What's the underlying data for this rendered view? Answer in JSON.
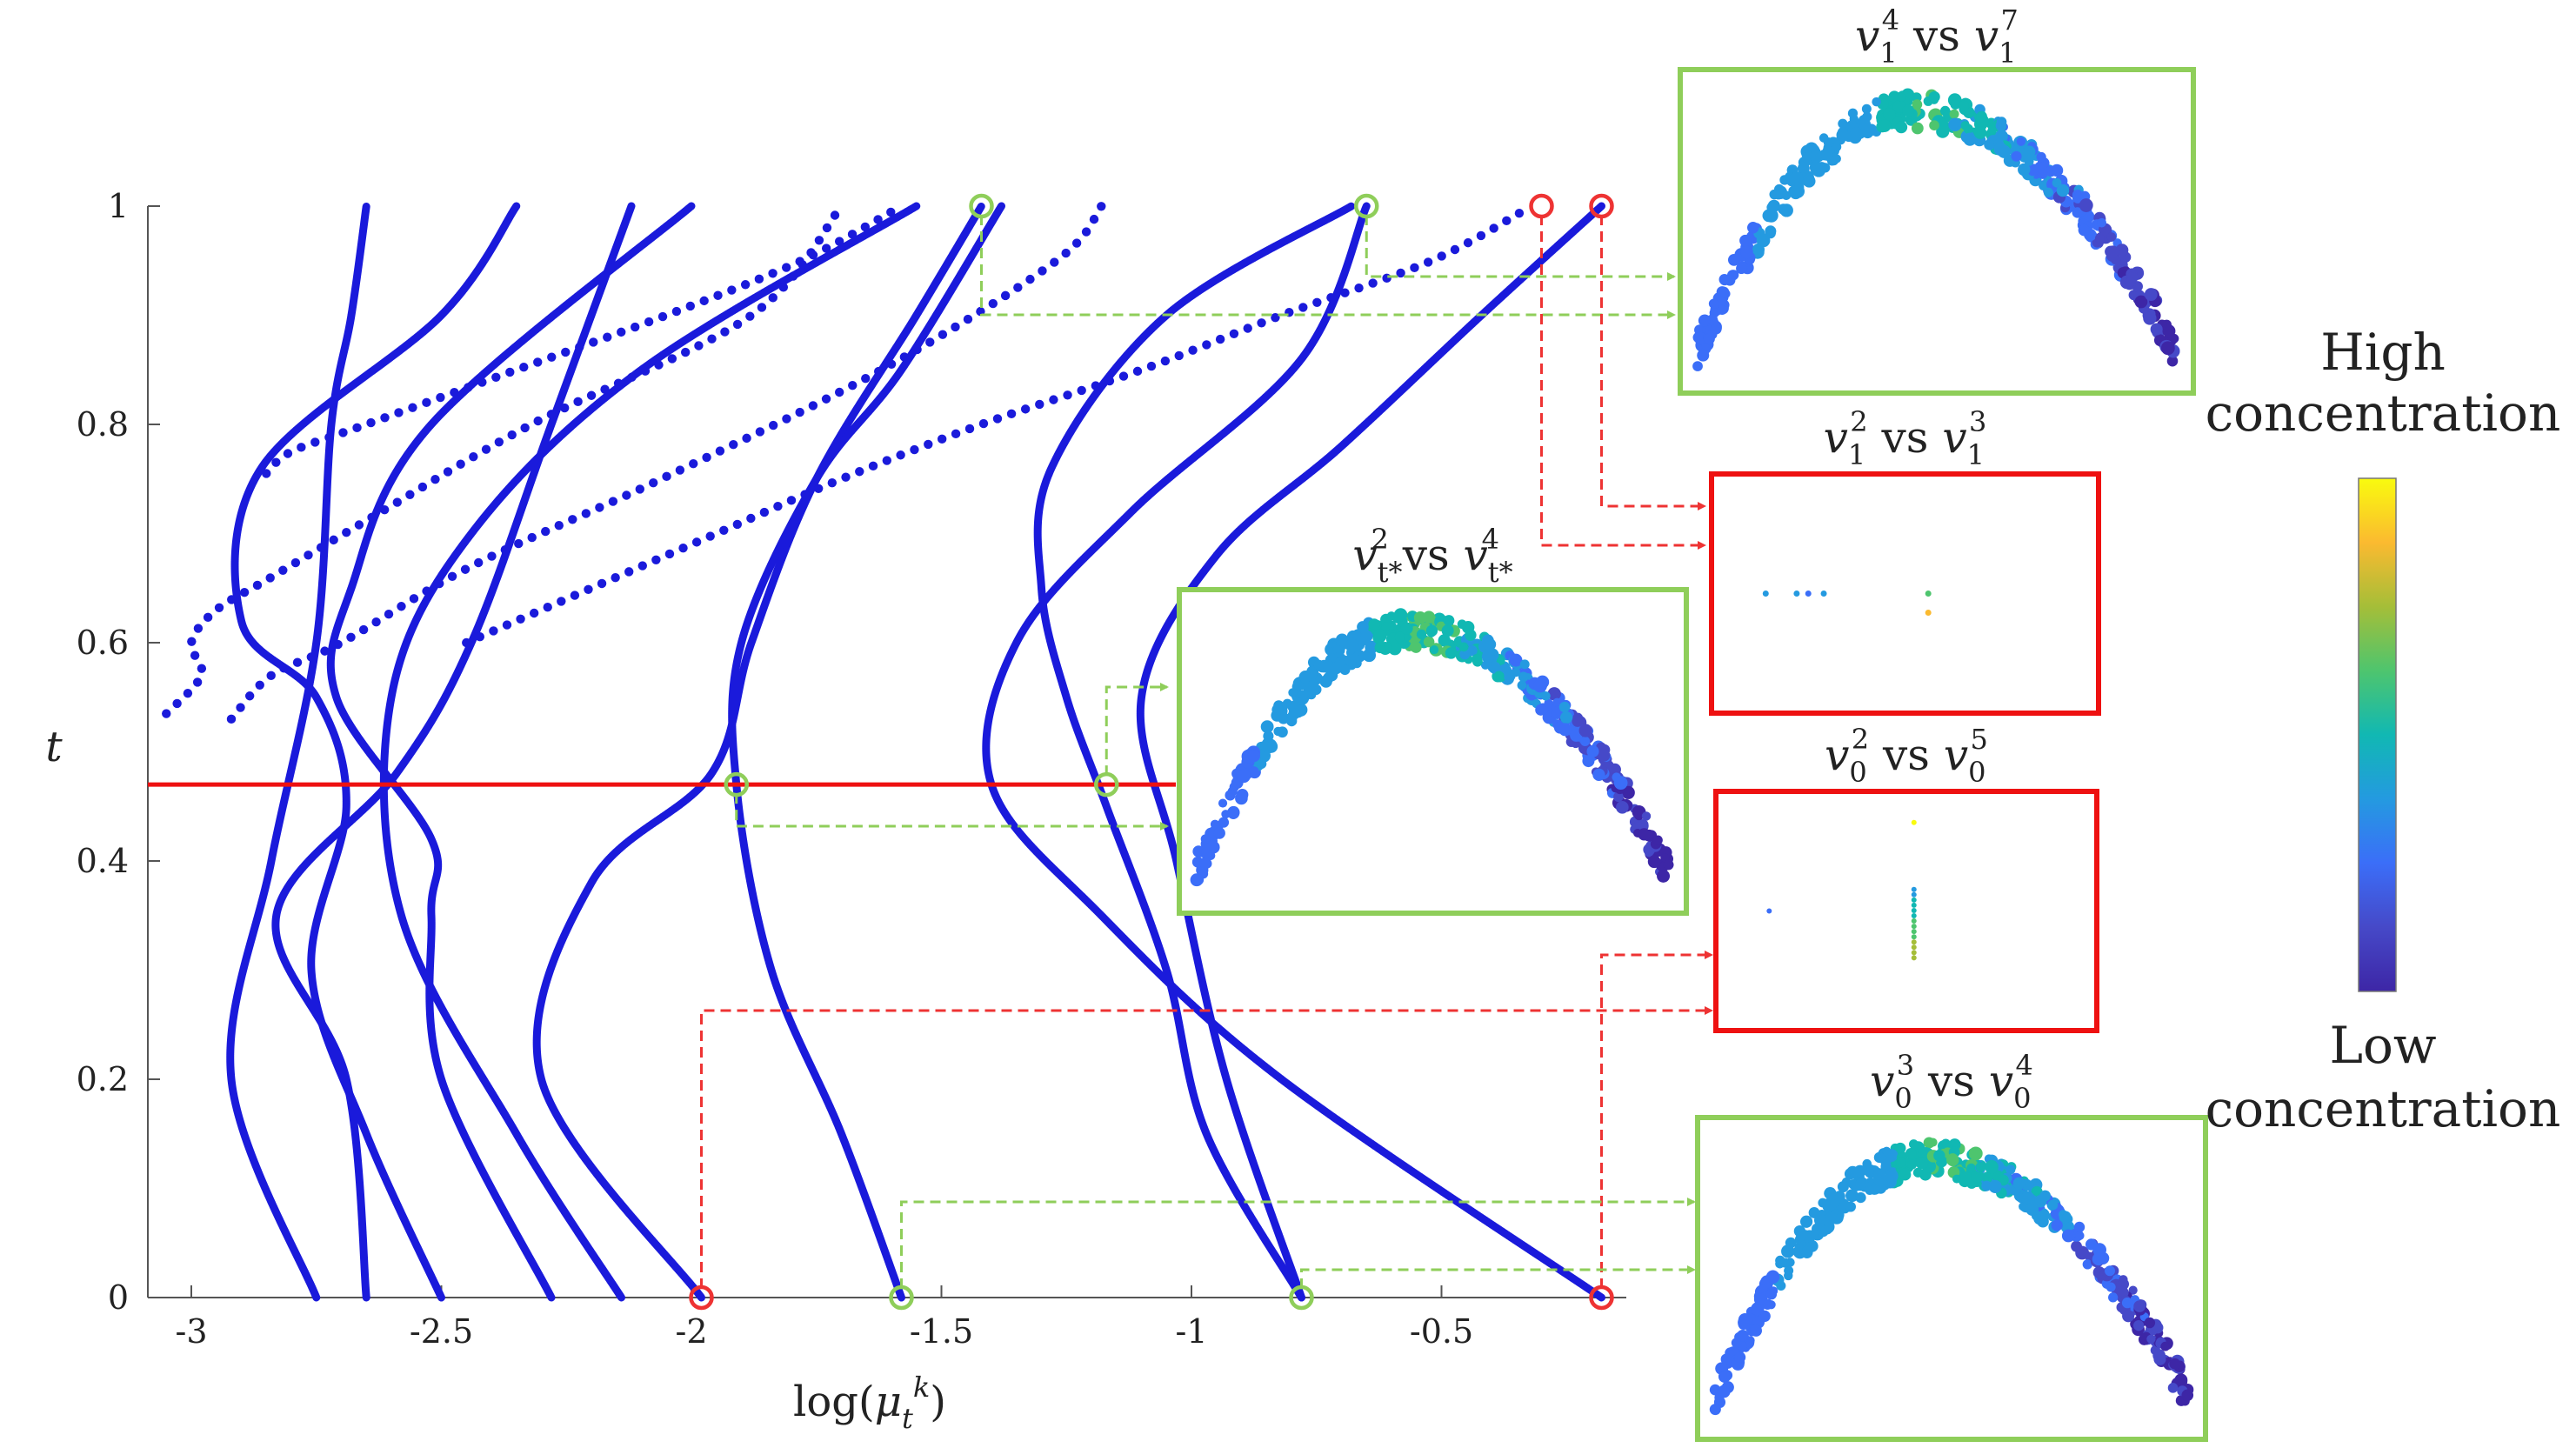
{
  "chart_data": {
    "type": "line",
    "xlabel": "log(μ_t^k)",
    "ylabel": "t",
    "xlim": [
      -3.05,
      -0.3
    ],
    "ylim": [
      0,
      1
    ],
    "xticks": [
      "-3",
      "-2.5",
      "-2",
      "-1.5",
      "-1",
      "-0.5"
    ],
    "xtick_values": [
      -3,
      -2.5,
      -2,
      -1.5,
      -1,
      -0.5
    ],
    "yticks": [
      "0",
      "0.2",
      "0.4",
      "0.6",
      "0.8",
      "1"
    ],
    "ytick_values": [
      0,
      0.2,
      0.4,
      0.6,
      0.8,
      1
    ],
    "series_color": "#1a1adb",
    "series": [
      {
        "t": [
          0,
          0.2,
          0.4,
          0.6,
          0.8,
          0.9,
          1.0
        ],
        "x": [
          -2.75,
          -2.92,
          -2.84,
          -2.75,
          -2.72,
          -2.68,
          -2.65
        ]
      },
      {
        "t": [
          0,
          0.2,
          0.35,
          0.48,
          0.6,
          0.8,
          1.0
        ],
        "x": [
          -2.65,
          -2.69,
          -2.83,
          -2.59,
          -2.44,
          -2.28,
          -2.12
        ]
      },
      {
        "t": [
          0,
          0.15,
          0.3,
          0.45,
          0.55,
          0.62,
          0.76,
          0.9,
          1.0
        ],
        "x": [
          -2.5,
          -2.65,
          -2.76,
          -2.69,
          -2.75,
          -2.9,
          -2.86,
          -2.5,
          -2.35
        ]
      },
      {
        "t": [
          0,
          0.2,
          0.35,
          0.42,
          0.55,
          0.65,
          0.8,
          1.0
        ],
        "x": [
          -2.28,
          -2.5,
          -2.52,
          -2.52,
          -2.71,
          -2.68,
          -2.52,
          -2.0
        ]
      },
      {
        "t": [
          0,
          0.15,
          0.35,
          0.55,
          0.7,
          0.85,
          1.0
        ],
        "x": [
          -2.14,
          -2.35,
          -2.58,
          -2.6,
          -2.44,
          -2.1,
          -1.55
        ]
      },
      {
        "t": [
          0,
          0.2,
          0.38,
          0.48,
          0.6,
          0.75,
          0.9,
          1.0
        ],
        "x": [
          -1.98,
          -2.3,
          -2.2,
          -1.96,
          -1.88,
          -1.75,
          -1.55,
          -1.42
        ]
      },
      {
        "t": [
          0,
          0.15,
          0.3,
          0.47,
          0.6,
          0.75,
          0.85,
          1.0
        ],
        "x": [
          -1.58,
          -1.7,
          -1.84,
          -1.91,
          -1.9,
          -1.75,
          -1.58,
          -1.38
        ]
      },
      {
        "t": [
          0,
          0.15,
          0.3,
          0.45,
          0.55,
          0.65,
          0.76,
          0.9,
          1.0
        ],
        "x": [
          -0.78,
          -0.97,
          -1.05,
          -1.17,
          -1.25,
          -1.3,
          -1.28,
          -1.05,
          -0.68
        ]
      },
      {
        "t": [
          0,
          0.2,
          0.35,
          0.47,
          0.6,
          0.72,
          0.86,
          1.0
        ],
        "x": [
          -0.18,
          -0.82,
          -1.18,
          -1.4,
          -1.35,
          -1.12,
          -0.78,
          -0.65
        ]
      },
      {
        "t": [
          0,
          0.2,
          0.4,
          0.55,
          0.68,
          0.78,
          0.9,
          1.0
        ],
        "x": [
          -0.78,
          -0.93,
          -1.03,
          -1.1,
          -0.95,
          -0.7,
          -0.42,
          -0.18
        ]
      }
    ],
    "dotted_series": [
      {
        "t": [
          0.535,
          0.57,
          0.6,
          0.63,
          0.66,
          0.72,
          0.8,
          0.9,
          1.0
        ],
        "x": [
          -3.05,
          -2.98,
          -3.0,
          -2.95,
          -2.84,
          -2.62,
          -2.32,
          -1.88,
          -1.7
        ]
      },
      {
        "t": [
          0.53,
          0.57,
          0.6,
          0.67,
          0.75,
          0.85,
          0.95,
          1.0
        ],
        "x": [
          -2.92,
          -2.84,
          -2.7,
          -2.44,
          -2.06,
          -1.62,
          -1.27,
          -1.18
        ]
      },
      {
        "t": [
          0.755,
          0.775,
          0.8,
          0.85,
          0.9,
          0.95,
          1.0
        ],
        "x": [
          -2.85,
          -2.8,
          -2.65,
          -2.35,
          -2.05,
          -1.78,
          -1.58
        ]
      },
      {
        "t": [
          0.6,
          0.65,
          0.7,
          0.75,
          0.8,
          0.85,
          0.9,
          0.95,
          1.0
        ],
        "x": [
          -2.45,
          -2.2,
          -1.95,
          -1.7,
          -1.42,
          -1.1,
          -0.82,
          -0.52,
          -0.32
        ]
      }
    ],
    "horizontal_line": {
      "t": 0.47,
      "color": "#ee1111"
    },
    "green_markers": [
      {
        "x": -1.42,
        "t": 1.0
      },
      {
        "x": -0.65,
        "t": 1.0
      },
      {
        "x": -1.91,
        "t": 0.47
      },
      {
        "x": -1.17,
        "t": 0.47
      },
      {
        "x": -1.58,
        "t": 0.0
      },
      {
        "x": -0.78,
        "t": 0.0
      }
    ],
    "red_markers": [
      {
        "x": -0.3,
        "t": 1.0
      },
      {
        "x": -0.18,
        "t": 1.0
      },
      {
        "x": -1.98,
        "t": 0.0
      },
      {
        "x": -0.18,
        "t": 0.0
      }
    ],
    "marker_green": "#8fce5a",
    "marker_red": "#ee3333",
    "panels": [
      {
        "title": "v_1^4 vs v_1^7",
        "title_main": "v",
        "sup_a": "4",
        "sub_a": "1",
        "vs": "vs",
        "sup_b": "7",
        "sub_b": "1",
        "border": "#8fce5a",
        "kind": "arc"
      },
      {
        "title": "v_1^2 vs v_1^3",
        "title_main": "v",
        "sup_a": "2",
        "sub_a": "1",
        "vs": "vs",
        "sup_b": "3",
        "sub_b": "1",
        "border": "#ee1111",
        "kind": "sparse1"
      },
      {
        "title": "v_t*^2 vs v_t*^4",
        "title_main": "v",
        "sup_a": "2",
        "sub_a": "t*",
        "vs": "vs",
        "sup_b": "4",
        "sub_b": "t*",
        "border": "#8fce5a",
        "kind": "arc"
      },
      {
        "title": "v_0^2 vs v_0^5",
        "title_main": "v",
        "sup_a": "2",
        "sub_a": "0",
        "vs": "vs",
        "sup_b": "5",
        "sub_b": "0",
        "border": "#ee1111",
        "kind": "sparse2"
      },
      {
        "title": "v_0^3 vs v_0^4",
        "title_main": "v",
        "sup_a": "3",
        "sub_a": "0",
        "vs": "vs",
        "sup_b": "4",
        "sub_b": "0",
        "border": "#8fce5a",
        "kind": "arc"
      }
    ],
    "colorbar": {
      "top_label_line1": "High",
      "top_label_line2": "concentration",
      "bottom_label_line1": "Low",
      "bottom_label_line2": "concentration",
      "colors": [
        "#f9fb0e",
        "#fbba30",
        "#a5be38",
        "#4ec56e",
        "#11b8b3",
        "#249ae0",
        "#3b6ef8",
        "#4649c8",
        "#3d26a6"
      ]
    }
  }
}
